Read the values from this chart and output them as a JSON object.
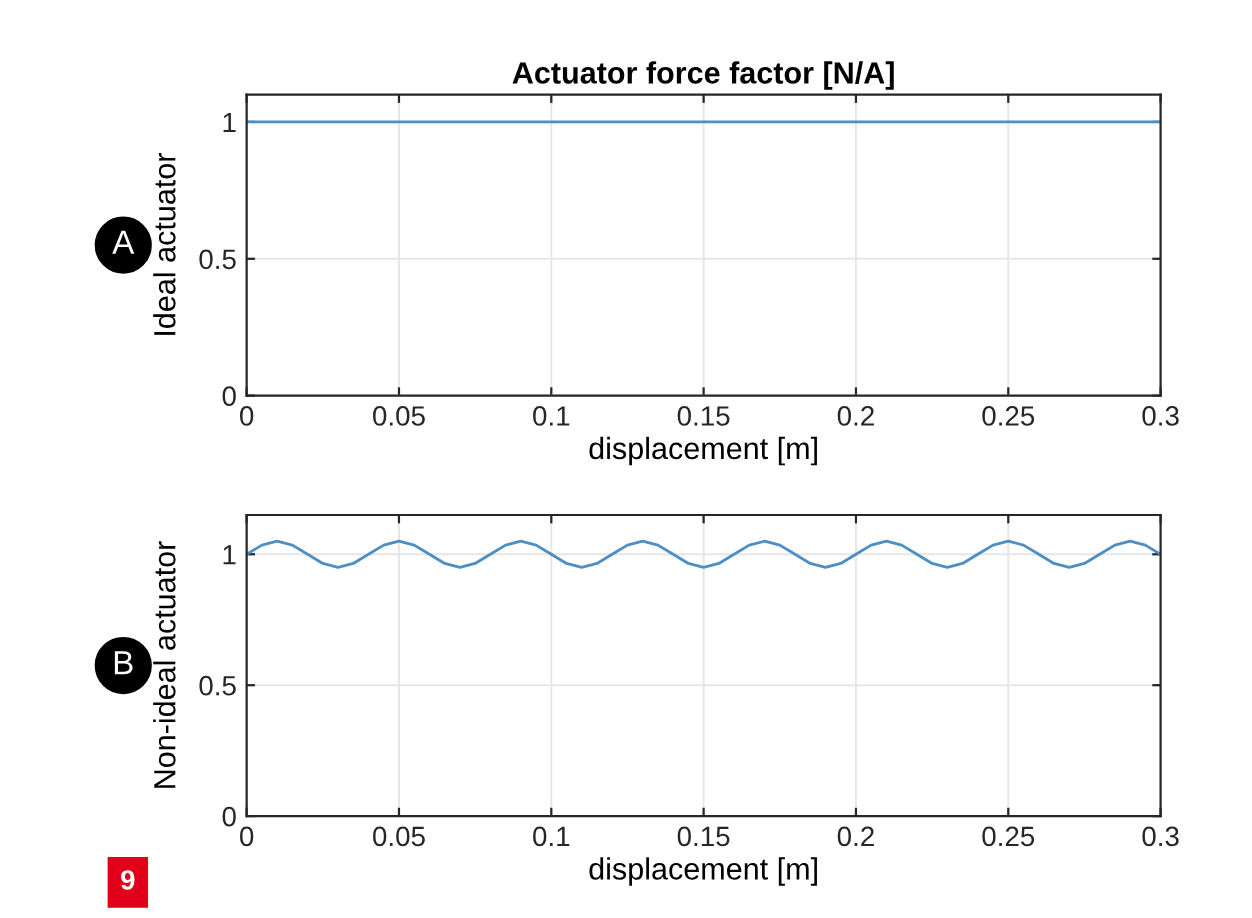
{
  "chart_data": [
    {
      "type": "line",
      "title": "Actuator force factor [N/A]",
      "xlabel": "displacement [m]",
      "ylabel": "Ideal actuator",
      "annotations": [
        "A"
      ],
      "x": [
        0,
        0.3
      ],
      "series": [
        {
          "color": "#4d8fc4",
          "values": [
            1,
            1
          ]
        }
      ],
      "xlim": [
        0,
        0.3
      ],
      "xticks": [
        0,
        0.05,
        0.1,
        0.15,
        0.2,
        0.25,
        0.3
      ],
      "ylim": [
        0,
        1.1
      ],
      "yticks": [
        0,
        0.5,
        1
      ],
      "grid": true,
      "legend": false
    },
    {
      "type": "line",
      "xlabel": "displacement [m]",
      "ylabel": "Non-ideal actuator",
      "annotations": [
        "B",
        "9"
      ],
      "x": [
        0,
        0.005,
        0.01,
        0.015,
        0.02,
        0.025,
        0.03,
        0.035,
        0.04,
        0.045,
        0.05,
        0.055,
        0.06,
        0.065,
        0.07,
        0.075,
        0.08,
        0.085,
        0.09,
        0.095,
        0.1,
        0.105,
        0.11,
        0.115,
        0.12,
        0.125,
        0.13,
        0.135,
        0.14,
        0.145,
        0.15,
        0.155,
        0.16,
        0.165,
        0.17,
        0.175,
        0.18,
        0.185,
        0.19,
        0.195,
        0.2,
        0.205,
        0.21,
        0.215,
        0.22,
        0.225,
        0.23,
        0.235,
        0.24,
        0.245,
        0.25,
        0.255,
        0.26,
        0.265,
        0.27,
        0.275,
        0.28,
        0.285,
        0.29,
        0.295,
        0.3
      ],
      "series": [
        {
          "color": "#4d8fc4",
          "values": [
            1,
            1.035,
            1.05,
            1.035,
            1,
            0.965,
            0.95,
            0.965,
            1,
            1.035,
            1.05,
            1.035,
            1,
            0.965,
            0.95,
            0.965,
            1,
            1.035,
            1.05,
            1.035,
            1,
            0.965,
            0.95,
            0.965,
            1,
            1.035,
            1.05,
            1.035,
            1,
            0.965,
            0.95,
            0.965,
            1,
            1.035,
            1.05,
            1.035,
            1,
            0.965,
            0.95,
            0.965,
            1,
            1.035,
            1.05,
            1.035,
            1,
            0.965,
            0.95,
            0.965,
            1,
            1.035,
            1.05,
            1.035,
            1,
            0.965,
            0.95,
            0.965,
            1,
            1.035,
            1.05,
            1.035,
            1
          ]
        }
      ],
      "xlim": [
        0,
        0.3
      ],
      "xticks": [
        0,
        0.05,
        0.1,
        0.15,
        0.2,
        0.25,
        0.3
      ],
      "ylim": [
        0,
        1.15
      ],
      "yticks": [
        0,
        0.5,
        1
      ],
      "grid": true,
      "legend": false
    }
  ]
}
